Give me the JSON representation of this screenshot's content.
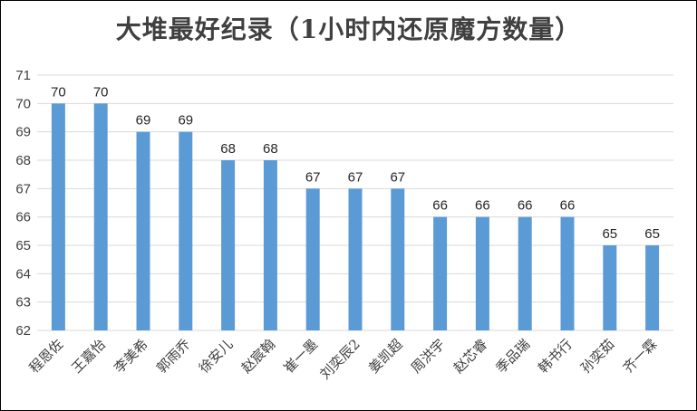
{
  "chart_data": {
    "type": "bar",
    "title": "大堆最好纪录（1小时内还原魔方数量）",
    "xlabel": "",
    "ylabel": "",
    "categories": [
      "程恩佐",
      "王嘉怡",
      "李美希",
      "郭雨乔",
      "徐安儿",
      "赵宸翰",
      "崔一墨",
      "刘奕辰2",
      "姜凯超",
      "周洪宇",
      "赵芯睿",
      "季品瑞",
      "韩书行",
      "孙奕茹",
      "齐一霖"
    ],
    "values": [
      70,
      70,
      69,
      69,
      68,
      68,
      67,
      67,
      67,
      66,
      66,
      66,
      66,
      65,
      65
    ],
    "ylim": [
      62,
      71
    ],
    "yticks": [
      62,
      63,
      64,
      65,
      66,
      67,
      68,
      69,
      70,
      71
    ],
    "grid": true,
    "legend": "none",
    "bar_color": "#5B9BD5",
    "grid_color": "#D9D9D9"
  }
}
